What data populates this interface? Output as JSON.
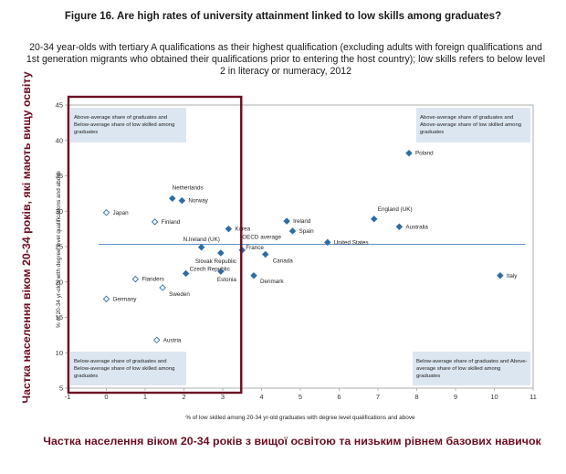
{
  "figure": {
    "title": "Figure 16. Are high rates of university attainment linked to low skills among graduates?",
    "subtitle": "20-34 year-olds with tertiary A qualifications as their highest qualification (excluding adults with foreign qualifications and 1st generation migrants who obtained their qualifications prior to entering the host country); low skills refers to below level 2 in literacy or numeracy, 2012",
    "caption_bottom": "Частка населення віком 20-34 років з вищої освітою та низьким рівнем базових навичок",
    "caption_side": "Частка населення віком 20-34 років, які мають вищу освіту"
  },
  "quadrants": {
    "top_left": [
      "Above-average share of graduates and",
      "Below-average share of low skilled among",
      "graduates"
    ],
    "top_right": [
      "Above-average share of graduates and",
      "Above-average share of low skilled among",
      "graduates"
    ],
    "bottom_left": [
      "Below-average share of graduates and",
      "Below-average share of low skilled among",
      "graduates"
    ],
    "bottom_right": [
      "Below-average share of graduates and Above-",
      "average share of low skilled among",
      "graduates"
    ]
  },
  "colors": {
    "marker": "#2e6da4",
    "average_line": "#4f86b8",
    "quadrant_fill": "#dce6f1",
    "highlight_box": "#6b0d22",
    "caption": "#6b0d22"
  },
  "chart_data": {
    "type": "scatter",
    "xlabel": "% of low skilled among 20-34 yr-old graduates with degree level qualifications and above",
    "ylabel": "% of 20-34 yr-olds with degree level qualifications and above",
    "xlim": [
      -1,
      11
    ],
    "ylim": [
      5,
      45
    ],
    "xticks": [
      -1,
      0,
      1,
      2,
      3,
      4,
      5,
      6,
      7,
      8,
      9,
      10,
      11
    ],
    "yticks": [
      5,
      10,
      15,
      20,
      25,
      30,
      35,
      40,
      45
    ],
    "average_y": 25.3,
    "average_label": "OECD average",
    "highlight_region": {
      "x": [
        -1,
        3.5
      ],
      "y": [
        5,
        45
      ]
    },
    "points": [
      {
        "name": "Poland",
        "x": 7.8,
        "y": 38.2,
        "hollow": false
      },
      {
        "name": "Netherlands",
        "x": 1.7,
        "y": 31.8,
        "hollow": false
      },
      {
        "name": "Norway",
        "x": 1.95,
        "y": 31.5,
        "hollow": false
      },
      {
        "name": "Japan",
        "x": 0.0,
        "y": 29.8,
        "hollow": true
      },
      {
        "name": "Finland",
        "x": 1.25,
        "y": 28.5,
        "hollow": true
      },
      {
        "name": "Korea",
        "x": 3.15,
        "y": 27.5,
        "hollow": false
      },
      {
        "name": "Ireland",
        "x": 4.65,
        "y": 28.6,
        "hollow": false
      },
      {
        "name": "England (UK)",
        "x": 6.9,
        "y": 28.9,
        "hollow": false
      },
      {
        "name": "Australia",
        "x": 7.55,
        "y": 27.8,
        "hollow": false
      },
      {
        "name": "Spain",
        "x": 4.8,
        "y": 27.2,
        "hollow": false
      },
      {
        "name": "N.Ireland (UK)",
        "x": 2.45,
        "y": 24.9,
        "hollow": false
      },
      {
        "name": "United States",
        "x": 5.7,
        "y": 25.6,
        "hollow": false
      },
      {
        "name": "France",
        "x": 3.5,
        "y": 24.5,
        "hollow": false
      },
      {
        "name": "Slovak Republic",
        "x": 2.95,
        "y": 24.1,
        "hollow": false
      },
      {
        "name": "Canada",
        "x": 4.1,
        "y": 23.9,
        "hollow": false
      },
      {
        "name": "Czech Republic",
        "x": 2.05,
        "y": 21.2,
        "hollow": false
      },
      {
        "name": "Estonia",
        "x": 2.95,
        "y": 21.5,
        "hollow": false
      },
      {
        "name": "Denmark",
        "x": 3.8,
        "y": 20.9,
        "hollow": false
      },
      {
        "name": "Flanders",
        "x": 0.75,
        "y": 20.4,
        "hollow": true
      },
      {
        "name": "Sweden",
        "x": 1.45,
        "y": 19.2,
        "hollow": true
      },
      {
        "name": "Italy",
        "x": 10.15,
        "y": 20.9,
        "hollow": false
      },
      {
        "name": "Germany",
        "x": 0.0,
        "y": 17.6,
        "hollow": true
      },
      {
        "name": "Austria",
        "x": 1.3,
        "y": 11.8,
        "hollow": true
      }
    ]
  }
}
